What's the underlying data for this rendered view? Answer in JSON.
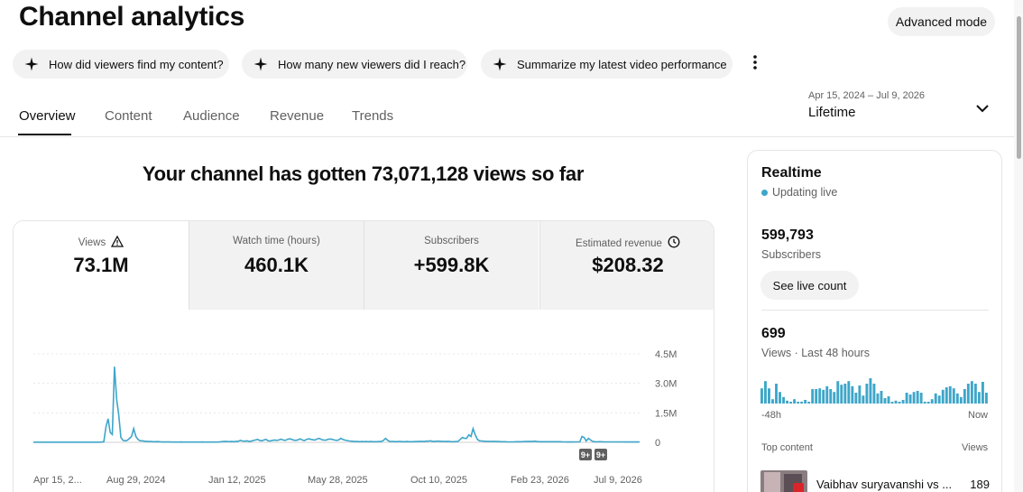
{
  "header": {
    "title": "Channel analytics",
    "advanced_mode_label": "Advanced mode"
  },
  "prompts": [
    {
      "label": "How did viewers find my content?",
      "icon": "sparkle-icon"
    },
    {
      "label": "How many new viewers did I reach?",
      "icon": "sparkle-icon"
    },
    {
      "label": "Summarize my latest video performance",
      "icon": "sparkle-icon"
    }
  ],
  "tabs": [
    {
      "label": "Overview",
      "active": true
    },
    {
      "label": "Content",
      "active": false
    },
    {
      "label": "Audience",
      "active": false
    },
    {
      "label": "Revenue",
      "active": false
    },
    {
      "label": "Trends",
      "active": false
    }
  ],
  "date_selector": {
    "range": "Apr 15, 2024 – Jul 9, 2026",
    "period": "Lifetime"
  },
  "headline": "Your channel has gotten 73,071,128 views so far",
  "metrics": [
    {
      "label": "Views",
      "value": "73.1M",
      "icon": "warning-icon",
      "active": true
    },
    {
      "label": "Watch time (hours)",
      "value": "460.1K",
      "active": false
    },
    {
      "label": "Subscribers",
      "value": "+599.8K",
      "active": false
    },
    {
      "label": "Estimated revenue",
      "value": "$208.32",
      "icon": "clock-icon",
      "active": false
    }
  ],
  "chart_data": {
    "type": "line",
    "series": [
      {
        "values": [
          8000,
          8000,
          8000,
          8000,
          9000,
          8000,
          8000,
          8000,
          8000,
          8000,
          8000,
          9000,
          8000,
          8000,
          8000,
          8000,
          8000,
          8000,
          8000,
          9000,
          8000,
          8000,
          8000,
          8000,
          8000,
          8000,
          8000,
          8000,
          8000,
          9000,
          8000,
          10000,
          15000,
          30000,
          800000,
          1200000,
          500000,
          400000,
          3850000,
          2200000,
          1400000,
          250000,
          100000,
          80000,
          100000,
          200000,
          300000,
          700000,
          300000,
          150000,
          80000,
          80000,
          60000,
          50000,
          40000,
          40000,
          30000,
          30000,
          35000,
          30000,
          25000,
          20000,
          25000,
          20000,
          20000,
          15000,
          15000,
          15000,
          15000,
          20000,
          15000,
          15000,
          15000,
          15000,
          15000,
          15000,
          15000,
          15000,
          15000,
          20000,
          15000,
          15000,
          15000,
          15000,
          15000,
          15000,
          15000,
          20000,
          30000,
          40000,
          50000,
          40000,
          35000,
          40000,
          30000,
          50000,
          60000,
          100000,
          70000,
          60000,
          80000,
          50000,
          60000,
          90000,
          120000,
          150000,
          100000,
          80000,
          120000,
          150000,
          80000,
          70000,
          100000,
          120000,
          100000,
          120000,
          160000,
          120000,
          100000,
          150000,
          180000,
          150000,
          110000,
          100000,
          130000,
          180000,
          120000,
          90000,
          150000,
          180000,
          150000,
          130000,
          120000,
          180000,
          200000,
          140000,
          120000,
          110000,
          150000,
          170000,
          150000,
          120000,
          100000,
          120000,
          200000,
          150000,
          110000,
          90000,
          70000,
          60000,
          50000,
          40000,
          40000,
          30000,
          40000,
          30000,
          40000,
          30000,
          40000,
          30000,
          30000,
          30000,
          40000,
          40000,
          100000,
          200000,
          100000,
          40000,
          40000,
          40000,
          30000,
          40000,
          40000,
          30000,
          30000,
          40000,
          30000,
          30000,
          30000,
          40000,
          40000,
          50000,
          50000,
          40000,
          60000,
          60000,
          80000,
          50000,
          50000,
          60000,
          60000,
          50000,
          50000,
          40000,
          50000,
          40000,
          30000,
          30000,
          40000,
          50000,
          150000,
          250000,
          200000,
          200000,
          380000,
          300000,
          700000,
          380000,
          150000,
          80000,
          70000,
          60000,
          50000,
          50000,
          40000,
          50000,
          50000,
          40000,
          40000,
          30000,
          30000,
          30000,
          25000,
          25000,
          25000,
          25000,
          30000,
          30000,
          30000,
          30000,
          40000,
          40000,
          50000,
          40000,
          50000,
          60000,
          40000,
          30000,
          30000,
          30000,
          30000,
          30000,
          30000,
          30000,
          30000,
          30000,
          30000,
          30000,
          25000,
          25000,
          20000,
          20000,
          20000,
          20000,
          25000,
          25000,
          25000,
          300000,
          250000,
          70000,
          200000,
          120000,
          50000,
          30000,
          25000,
          30000,
          30000,
          25000,
          25000,
          25000,
          25000,
          25000,
          25000,
          25000,
          25000,
          25000,
          25000,
          20000,
          20000,
          20000,
          20000,
          20000,
          20000,
          20000,
          20000
        ]
      }
    ],
    "x_tick_labels": [
      "Apr 15, 2...",
      "Aug 29, 2024",
      "Jan 12, 2025",
      "May 28, 2025",
      "Oct 10, 2025",
      "Feb 23, 2026",
      "Jul 9, 2026"
    ],
    "y_tick_labels": [
      "4.5M",
      "3.0M",
      "1.5M",
      "0"
    ],
    "ylim": [
      0,
      4500000
    ],
    "markers": [
      "9+",
      "9+"
    ],
    "grid": true,
    "color": "#3ea6c9"
  },
  "realtime": {
    "title": "Realtime",
    "status": "Updating live",
    "subscribers_value": "599,793",
    "subscribers_label": "Subscribers",
    "live_count_button": "See live count",
    "views_value": "699",
    "views_label": "Views · Last 48 hours",
    "bars": [
      0.42,
      0.62,
      0.42,
      0.12,
      0.55,
      0.32,
      0.18,
      0.08,
      0.05,
      0.12,
      0.05,
      0.05,
      0.1,
      0.05,
      0.4,
      0.4,
      0.42,
      0.38,
      0.48,
      0.4,
      0.32,
      0.62,
      0.52,
      0.55,
      0.62,
      0.48,
      0.3,
      0.5,
      0.22,
      0.55,
      0.7,
      0.55,
      0.28,
      0.35,
      0.15,
      0.2,
      0.05,
      0.08,
      0.05,
      0.1,
      0.3,
      0.25,
      0.32,
      0.35,
      0.3,
      0.05,
      0.05,
      0.12,
      0.28,
      0.22,
      0.38,
      0.45,
      0.48,
      0.42,
      0.28,
      0.18,
      0.4,
      0.55,
      0.62,
      0.55,
      0.32,
      0.6,
      0.3
    ],
    "axis_left": "-48h",
    "axis_right": "Now",
    "top_content_label": "Top content",
    "top_views_label": "Views",
    "top_items": [
      {
        "title": "Vaibhav suryavanshi vs ...",
        "views": "189"
      }
    ]
  }
}
